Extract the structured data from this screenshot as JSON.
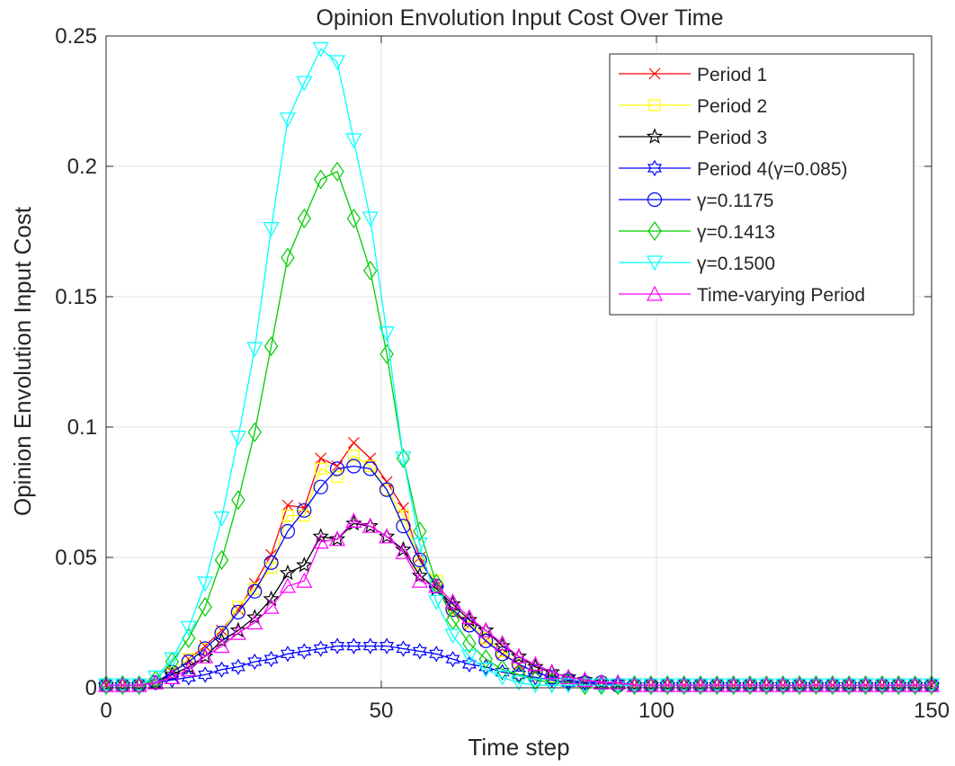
{
  "chart_data": {
    "type": "line",
    "title": "Opinion Envolution Input Cost Over Time",
    "xlabel": "Time step",
    "ylabel": "Opinion Envolution Input Cost",
    "xlim": [
      0,
      150
    ],
    "ylim": [
      0,
      0.25
    ],
    "xticks": [
      0,
      50,
      100,
      150
    ],
    "yticks": [
      0,
      0.05,
      0.1,
      0.15,
      0.2,
      0.25
    ],
    "xtick_labels": [
      "0",
      "50",
      "100",
      "150"
    ],
    "ytick_labels": [
      "0",
      "0.05",
      "0.1",
      "0.15",
      "0.2",
      "0.25"
    ],
    "grid": true,
    "legend_position": "top-right",
    "x": [
      0,
      3,
      6,
      9,
      12,
      15,
      18,
      21,
      24,
      27,
      30,
      33,
      36,
      39,
      42,
      45,
      48,
      51,
      54,
      57,
      60,
      63,
      66,
      69,
      72,
      75,
      78,
      81,
      84,
      87,
      90,
      93,
      96,
      99,
      102,
      105,
      108,
      111,
      114,
      117,
      120,
      123,
      126,
      129,
      132,
      135,
      138,
      141,
      144,
      147,
      150
    ],
    "series": [
      {
        "name": "Period 1",
        "color": "#ff0000",
        "marker": "x",
        "values": [
          0.001,
          0.001,
          0.001,
          0.002,
          0.006,
          0.011,
          0.016,
          0.022,
          0.03,
          0.04,
          0.051,
          0.07,
          0.069,
          0.088,
          0.085,
          0.094,
          0.088,
          0.079,
          0.069,
          0.05,
          0.039,
          0.029,
          0.024,
          0.018,
          0.013,
          0.009,
          0.006,
          0.004,
          0.003,
          0.002,
          0.002,
          0.001,
          0.001,
          0.001,
          0.001,
          0.001,
          0.001,
          0.001,
          0.001,
          0.001,
          0.001,
          0.001,
          0.001,
          0.001,
          0.001,
          0.001,
          0.001,
          0.001,
          0.001,
          0.001,
          0.001
        ]
      },
      {
        "name": "Period 2",
        "color": "#ffff00",
        "marker": "square",
        "values": [
          0.001,
          0.001,
          0.001,
          0.002,
          0.006,
          0.011,
          0.015,
          0.021,
          0.031,
          0.038,
          0.046,
          0.066,
          0.066,
          0.084,
          0.081,
          0.089,
          0.085,
          0.076,
          0.066,
          0.048,
          0.041,
          0.03,
          0.025,
          0.019,
          0.014,
          0.009,
          0.006,
          0.004,
          0.003,
          0.002,
          0.002,
          0.001,
          0.001,
          0.001,
          0.001,
          0.001,
          0.001,
          0.001,
          0.001,
          0.001,
          0.001,
          0.001,
          0.001,
          0.001,
          0.001,
          0.001,
          0.001,
          0.001,
          0.001,
          0.001,
          0.001
        ]
      },
      {
        "name": "Period 3",
        "color": "#000000",
        "marker": "star",
        "values": [
          0.001,
          0.001,
          0.001,
          0.002,
          0.005,
          0.008,
          0.012,
          0.018,
          0.022,
          0.027,
          0.034,
          0.044,
          0.047,
          0.058,
          0.057,
          0.063,
          0.062,
          0.058,
          0.053,
          0.043,
          0.038,
          0.032,
          0.026,
          0.022,
          0.016,
          0.012,
          0.008,
          0.006,
          0.004,
          0.003,
          0.002,
          0.002,
          0.001,
          0.001,
          0.001,
          0.001,
          0.001,
          0.001,
          0.001,
          0.001,
          0.001,
          0.001,
          0.001,
          0.001,
          0.001,
          0.001,
          0.001,
          0.001,
          0.001,
          0.001,
          0.001
        ]
      },
      {
        "name": "Period 4(γ=0.085)",
        "color": "#0000ff",
        "marker": "hexagram",
        "values": [
          0.001,
          0.001,
          0.001,
          0.002,
          0.003,
          0.004,
          0.005,
          0.007,
          0.008,
          0.01,
          0.011,
          0.013,
          0.014,
          0.015,
          0.016,
          0.016,
          0.016,
          0.016,
          0.015,
          0.014,
          0.013,
          0.011,
          0.009,
          0.008,
          0.006,
          0.005,
          0.004,
          0.003,
          0.002,
          0.002,
          0.001,
          0.001,
          0.001,
          0.001,
          0.001,
          0.001,
          0.001,
          0.001,
          0.001,
          0.001,
          0.001,
          0.001,
          0.001,
          0.001,
          0.001,
          0.001,
          0.001,
          0.001,
          0.001,
          0.001,
          0.001
        ]
      },
      {
        "name": "γ=0.1175",
        "color": "#0000ff",
        "marker": "circle",
        "values": [
          0.001,
          0.001,
          0.001,
          0.002,
          0.006,
          0.01,
          0.015,
          0.021,
          0.029,
          0.037,
          0.048,
          0.06,
          0.068,
          0.077,
          0.084,
          0.085,
          0.084,
          0.076,
          0.062,
          0.049,
          0.039,
          0.03,
          0.024,
          0.018,
          0.013,
          0.009,
          0.006,
          0.004,
          0.003,
          0.002,
          0.002,
          0.001,
          0.001,
          0.001,
          0.001,
          0.001,
          0.001,
          0.001,
          0.001,
          0.001,
          0.001,
          0.001,
          0.001,
          0.001,
          0.001,
          0.001,
          0.001,
          0.001,
          0.001,
          0.001,
          0.001
        ]
      },
      {
        "name": "γ=0.1413",
        "color": "#00cc00",
        "marker": "diamond",
        "values": [
          0.001,
          0.001,
          0.001,
          0.003,
          0.01,
          0.019,
          0.031,
          0.049,
          0.072,
          0.098,
          0.131,
          0.165,
          0.18,
          0.195,
          0.198,
          0.18,
          0.16,
          0.128,
          0.088,
          0.06,
          0.04,
          0.026,
          0.017,
          0.011,
          0.007,
          0.005,
          0.003,
          0.002,
          0.002,
          0.001,
          0.001,
          0.001,
          0.001,
          0.001,
          0.001,
          0.001,
          0.001,
          0.001,
          0.001,
          0.001,
          0.001,
          0.001,
          0.001,
          0.001,
          0.001,
          0.001,
          0.001,
          0.001,
          0.001,
          0.001,
          0.001
        ]
      },
      {
        "name": "γ=0.1500",
        "color": "#00ffff",
        "marker": "triangle-down",
        "values": [
          0.001,
          0.001,
          0.001,
          0.004,
          0.011,
          0.023,
          0.04,
          0.065,
          0.096,
          0.13,
          0.176,
          0.218,
          0.232,
          0.245,
          0.24,
          0.21,
          0.18,
          0.136,
          0.088,
          0.055,
          0.033,
          0.02,
          0.012,
          0.007,
          0.004,
          0.002,
          0.001,
          0.001,
          0.001,
          0.001,
          0.001,
          0.001,
          0.001,
          0.001,
          0.001,
          0.001,
          0.001,
          0.001,
          0.001,
          0.001,
          0.001,
          0.001,
          0.001,
          0.001,
          0.001,
          0.001,
          0.001,
          0.001,
          0.001,
          0.001,
          0.001
        ]
      },
      {
        "name": "Time-varying Period",
        "color": "#ff00ff",
        "marker": "triangle-up",
        "values": [
          0.001,
          0.001,
          0.001,
          0.002,
          0.004,
          0.007,
          0.012,
          0.016,
          0.021,
          0.025,
          0.031,
          0.039,
          0.041,
          0.056,
          0.057,
          0.064,
          0.062,
          0.058,
          0.052,
          0.041,
          0.039,
          0.033,
          0.027,
          0.022,
          0.017,
          0.012,
          0.009,
          0.006,
          0.004,
          0.003,
          0.002,
          0.002,
          0.001,
          0.001,
          0.001,
          0.001,
          0.001,
          0.001,
          0.001,
          0.001,
          0.001,
          0.001,
          0.001,
          0.001,
          0.001,
          0.001,
          0.001,
          0.001,
          0.001,
          0.001,
          0.001
        ]
      }
    ]
  }
}
